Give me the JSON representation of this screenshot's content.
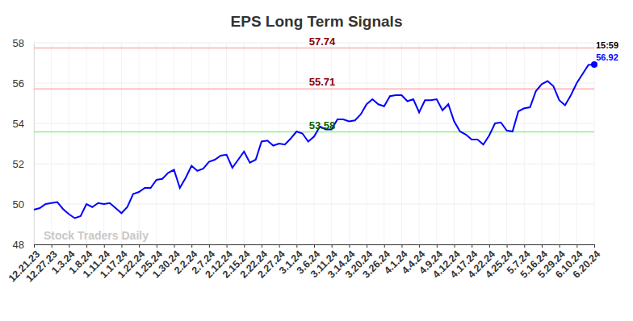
{
  "chart_data": {
    "type": "line",
    "title": "EPS Long Term Signals",
    "watermark": "Stock Traders Daily",
    "time_label": "15:59",
    "color": "#0000ff",
    "grid": true,
    "categories": [
      "12.21.23",
      null,
      null,
      "12.27.23",
      null,
      null,
      "1.3.24",
      null,
      null,
      "1.8.24",
      null,
      null,
      "1.11.24",
      null,
      null,
      "1.17.24",
      null,
      null,
      "1.22.24",
      null,
      null,
      "1.25.24",
      null,
      null,
      "1.30.24",
      null,
      null,
      "2.2.24",
      null,
      null,
      "2.7.24",
      null,
      null,
      "2.12.24",
      null,
      null,
      "2.15.24",
      null,
      null,
      "2.22.24",
      null,
      null,
      "2.27.24",
      null,
      null,
      "3.1.24",
      null,
      null,
      "3.6.24",
      null,
      null,
      "3.11.24",
      null,
      null,
      "3.14.24",
      null,
      null,
      "3.20.24",
      null,
      null,
      "3.26.24",
      null,
      null,
      "4.1.24",
      null,
      null,
      "4.4.24",
      null,
      null,
      "4.9.24",
      null,
      null,
      "4.12.24",
      null,
      null,
      "4.17.24",
      null,
      null,
      "4.22.24",
      null,
      null,
      "4.25.24",
      null,
      null,
      "5.7.24",
      null,
      null,
      "5.16.24",
      null,
      null,
      "5.29.24",
      null,
      null,
      "6.10.24",
      null,
      null,
      "6.20.24"
    ],
    "values": [
      49.72,
      49.8,
      50.0,
      50.05,
      50.1,
      49.75,
      49.5,
      49.3,
      49.4,
      50.0,
      49.85,
      50.05,
      50.0,
      50.05,
      49.8,
      49.55,
      49.85,
      50.5,
      50.6,
      50.8,
      50.8,
      51.2,
      51.25,
      51.55,
      51.7,
      50.8,
      51.3,
      51.9,
      51.65,
      51.75,
      52.1,
      52.2,
      52.4,
      52.45,
      51.8,
      52.2,
      52.6,
      52.05,
      52.2,
      53.1,
      53.15,
      52.9,
      53.0,
      52.95,
      53.25,
      53.6,
      53.5,
      53.1,
      53.35,
      53.85,
      53.7,
      53.7,
      54.2,
      54.2,
      54.1,
      54.15,
      54.45,
      54.95,
      55.2,
      54.95,
      54.85,
      55.35,
      55.4,
      55.4,
      55.1,
      55.2,
      54.55,
      55.15,
      55.15,
      55.2,
      54.65,
      54.95,
      54.1,
      53.6,
      53.45,
      53.2,
      53.2,
      52.95,
      53.4,
      54.0,
      54.05,
      53.65,
      53.6,
      54.6,
      54.75,
      54.8,
      55.6,
      55.95,
      56.1,
      55.85,
      55.15,
      54.9,
      55.4,
      56.0,
      56.45,
      56.9,
      56.92
    ],
    "ylim": [
      48,
      58
    ],
    "yticks": [
      48,
      50,
      52,
      54,
      56,
      58
    ],
    "annotations": [
      {
        "text": "57.74",
        "y": 57.74,
        "color": "#8b0000"
      },
      {
        "text": "55.71",
        "y": 55.71,
        "color": "#8b0000"
      },
      {
        "text": "53.58",
        "y": 53.58,
        "color": "#006400"
      }
    ]
  }
}
